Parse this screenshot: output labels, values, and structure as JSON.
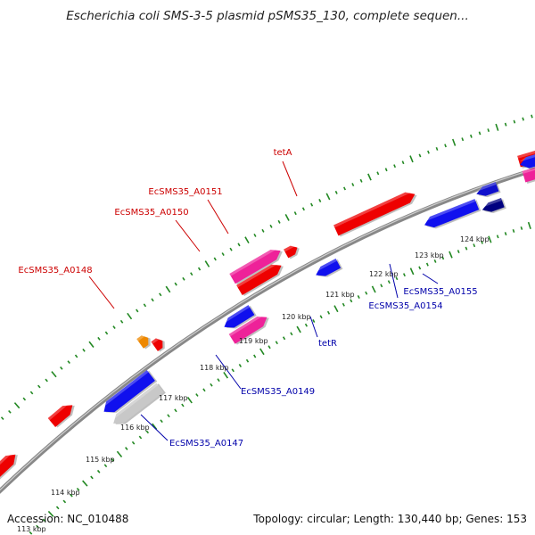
{
  "title": "Escherichia coli SMS-3-5 plasmid pSMS35_130, complete sequen...",
  "footer": {
    "accession": "Accession: NC_010488",
    "summary": "Topology: circular; Length: 130,440 bp; Genes: 153"
  },
  "colors": {
    "forward_gene": "#ee0000",
    "forward_pink": "#ee2299",
    "forward_orange": "#ee8800",
    "reverse_gene": "#1010ee",
    "reverse_dark": "#000080",
    "reverse_gray": "#c8c8c8",
    "backbone": "#888888",
    "tick": "#228822",
    "label_forward": "#cc0000",
    "label_reverse": "#0000aa"
  },
  "kbp_labels": [
    "113 kbp",
    "114 kbp",
    "115 kbp",
    "116 kbp",
    "117 kbp",
    "118 kbp",
    "119 kbp",
    "120 kbp",
    "121 kbp",
    "122 kbp",
    "123 kbp",
    "124 kbp"
  ],
  "gene_labels": {
    "forward": [
      "tetA",
      "EcSMS35_A0151",
      "EcSMS35_A0150",
      "EcSMS35_A0148"
    ],
    "reverse": [
      "tetR",
      "EcSMS35_A0155",
      "EcSMS35_A0154",
      "EcSMS35_A0149",
      "EcSMS35_A0147"
    ]
  }
}
